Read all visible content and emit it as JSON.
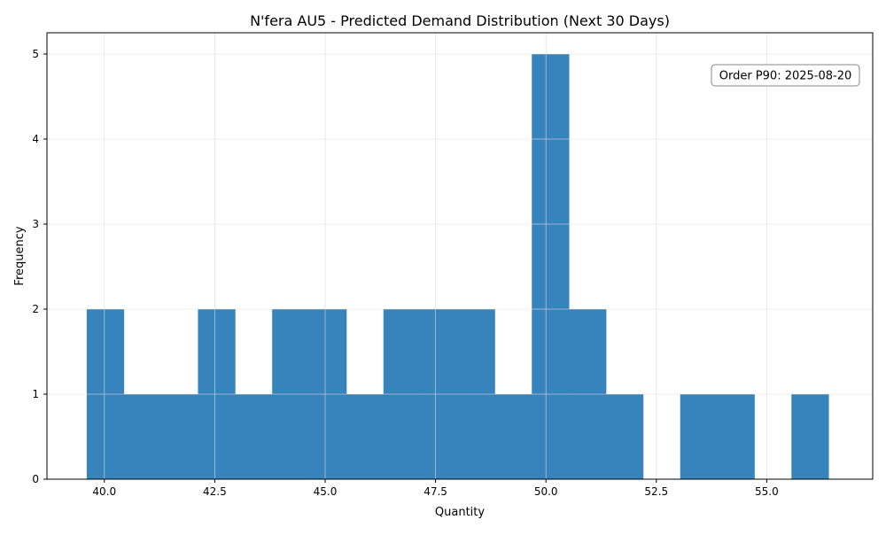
{
  "chart_data": {
    "type": "bar",
    "title": "N'fera AU5 - Predicted Demand Distribution (Next 30 Days)",
    "xlabel": "Quantity",
    "ylabel": "Frequency",
    "xlim": [
      38.7,
      57.4
    ],
    "ylim": [
      0,
      5.25
    ],
    "xticks": [
      "40.0",
      "42.5",
      "45.0",
      "47.5",
      "50.0",
      "52.5",
      "55.0"
    ],
    "xtick_values": [
      40.0,
      42.5,
      45.0,
      47.5,
      50.0,
      52.5,
      55.0
    ],
    "yticks": [
      "0",
      "1",
      "2",
      "3",
      "4",
      "5"
    ],
    "ytick_values": [
      0,
      1,
      2,
      3,
      4,
      5
    ],
    "grid": true,
    "bar_color": "#3783bc",
    "bins": [
      {
        "start": 39.6,
        "end": 40.44,
        "count": 2
      },
      {
        "start": 40.44,
        "end": 41.28,
        "count": 1
      },
      {
        "start": 41.28,
        "end": 42.12,
        "count": 1
      },
      {
        "start": 42.12,
        "end": 42.96,
        "count": 2
      },
      {
        "start": 42.96,
        "end": 43.8,
        "count": 1
      },
      {
        "start": 43.8,
        "end": 44.64,
        "count": 2
      },
      {
        "start": 44.64,
        "end": 45.48,
        "count": 2
      },
      {
        "start": 45.48,
        "end": 46.32,
        "count": 1
      },
      {
        "start": 46.32,
        "end": 47.16,
        "count": 2
      },
      {
        "start": 47.16,
        "end": 48.0,
        "count": 2
      },
      {
        "start": 48.0,
        "end": 48.84,
        "count": 2
      },
      {
        "start": 48.84,
        "end": 49.68,
        "count": 1
      },
      {
        "start": 49.68,
        "end": 50.52,
        "count": 5
      },
      {
        "start": 50.52,
        "end": 51.36,
        "count": 2
      },
      {
        "start": 51.36,
        "end": 52.2,
        "count": 1
      },
      {
        "start": 52.2,
        "end": 53.04,
        "count": 0
      },
      {
        "start": 53.04,
        "end": 53.88,
        "count": 1
      },
      {
        "start": 53.88,
        "end": 54.72,
        "count": 1
      },
      {
        "start": 54.72,
        "end": 55.56,
        "count": 0
      },
      {
        "start": 55.56,
        "end": 56.4,
        "count": 1
      }
    ],
    "annotation": "Order P90: 2025-08-20",
    "annotation_position": "top-right"
  }
}
